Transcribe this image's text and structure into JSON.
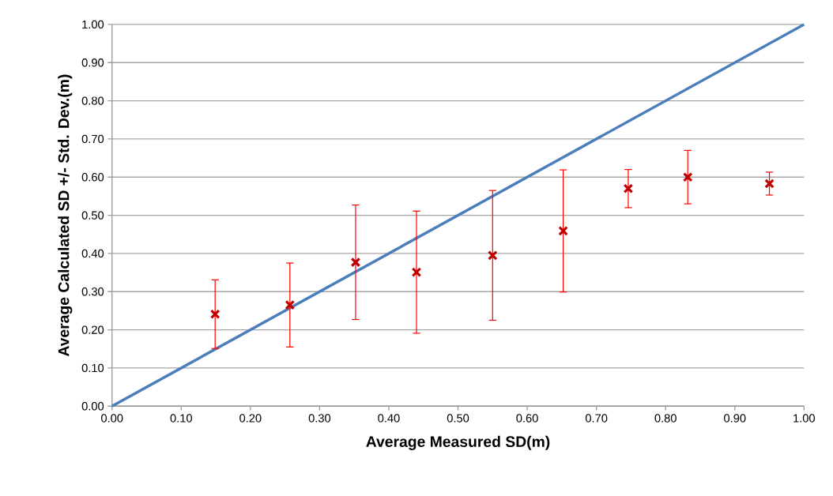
{
  "chart_data": {
    "type": "scatter",
    "xlabel": "Average Measured SD(m)",
    "ylabel": "Average Calculated SD +/- Std. Dev.(m)",
    "xlim": [
      0,
      1
    ],
    "ylim": [
      0,
      1
    ],
    "xticks": [
      {
        "value": 0,
        "label": "0.00"
      },
      {
        "value": 0.1,
        "label": "0.10"
      },
      {
        "value": 0.2,
        "label": "0.20"
      },
      {
        "value": 0.3,
        "label": "0.30"
      },
      {
        "value": 0.4,
        "label": "0.40"
      },
      {
        "value": 0.5,
        "label": "0.50"
      },
      {
        "value": 0.6,
        "label": "0.60"
      },
      {
        "value": 0.7,
        "label": "0.70"
      },
      {
        "value": 0.8,
        "label": "0.80"
      },
      {
        "value": 0.9,
        "label": "0.90"
      },
      {
        "value": 1,
        "label": "1.00"
      }
    ],
    "yticks": [
      {
        "value": 0,
        "label": "0.00"
      },
      {
        "value": 0.1,
        "label": "0.10"
      },
      {
        "value": 0.2,
        "label": "0.20"
      },
      {
        "value": 0.3,
        "label": "0.30"
      },
      {
        "value": 0.4,
        "label": "0.40"
      },
      {
        "value": 0.5,
        "label": "0.50"
      },
      {
        "value": 0.6,
        "label": "0.60"
      },
      {
        "value": 0.7,
        "label": "0.70"
      },
      {
        "value": 0.8,
        "label": "0.80"
      },
      {
        "value": 0.9,
        "label": "0.90"
      },
      {
        "value": 1,
        "label": "1.00"
      }
    ],
    "grid": "y",
    "series": [
      {
        "type": "line",
        "color": "#4a7ebb",
        "marker": "none",
        "line_style": "solid",
        "x": [
          0,
          1
        ],
        "values": [
          0,
          1
        ]
      },
      {
        "color": "#c00000",
        "marker": "cross",
        "x": [
          0.149,
          0.257,
          0.352,
          0.44,
          0.55,
          0.652,
          0.746,
          0.832,
          0.95
        ],
        "values": [
          0.241,
          0.265,
          0.377,
          0.351,
          0.395,
          0.459,
          0.57,
          0.6,
          0.583
        ],
        "errors": [
          0.09,
          0.11,
          0.15,
          0.16,
          0.17,
          0.16,
          0.05,
          0.07,
          0.03
        ]
      }
    ]
  }
}
